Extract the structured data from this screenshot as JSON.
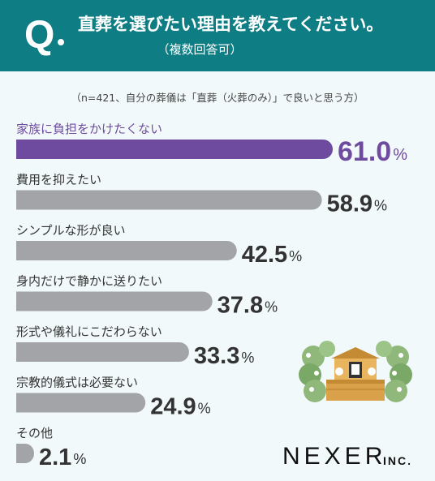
{
  "header": {
    "q_mark": "Q",
    "question": "直葬を選びたい理由を教えてください。",
    "subtitle": "（複数回答可）"
  },
  "note": "（n=421、自分の葬儀は「直葬（火葬のみ）」で良いと思う方）",
  "brand": {
    "logo": "NEXER",
    "suffix": "INC."
  },
  "colors": {
    "header": "#0e7d84",
    "highlight": "#6e4b9e",
    "bar": "#a3a4a8",
    "background": "#f2f9fb"
  },
  "chart_data": {
    "type": "bar",
    "orientation": "horizontal",
    "unit": "%",
    "categories": [
      "家族に負担をかけたくない",
      "費用を抑えたい",
      "シンプルな形が良い",
      "身内だけで静かに送りたい",
      "形式や儀礼にこだわらない",
      "宗教的儀式は必要ない",
      "その他"
    ],
    "values": [
      61.0,
      58.9,
      42.5,
      37.8,
      33.3,
      24.9,
      2.1
    ],
    "value_labels": [
      "61.0",
      "58.9",
      "42.5",
      "37.8",
      "33.3",
      "24.9",
      "2.1"
    ],
    "highlight_index": 0
  }
}
